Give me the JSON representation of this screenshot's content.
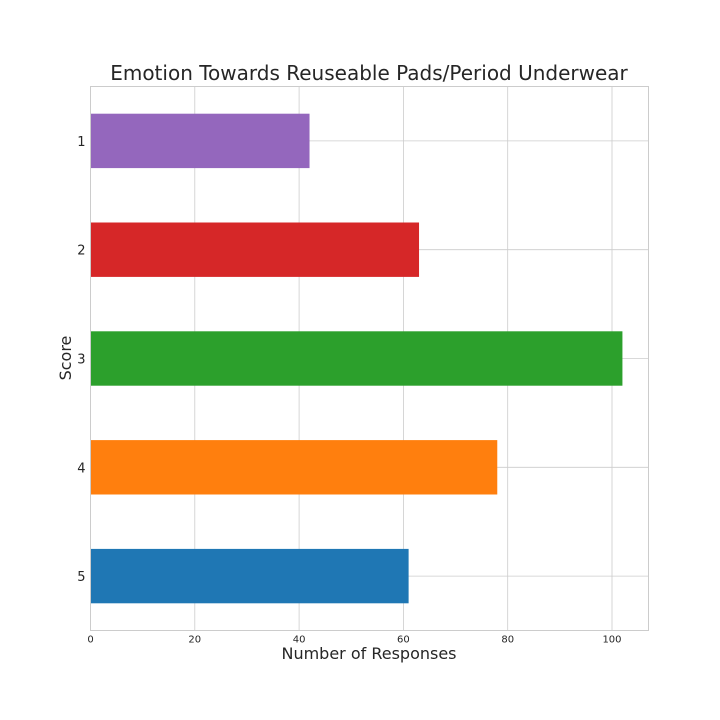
{
  "chart_data": {
    "type": "bar",
    "orientation": "horizontal",
    "title": "Emotion Towards Reuseable Pads/Period Underwear",
    "xlabel": "Number of Responses",
    "ylabel": "Score",
    "categories": [
      "1",
      "2",
      "3",
      "4",
      "5"
    ],
    "values": [
      42,
      63,
      102,
      78,
      61
    ],
    "colors": [
      "#9467bd",
      "#d62728",
      "#2ca02c",
      "#ff7f0e",
      "#1f77b4"
    ],
    "xlim": [
      0,
      107
    ],
    "xticks": [
      0,
      20,
      40,
      60,
      80,
      100
    ],
    "grid": true,
    "legend": "none"
  }
}
